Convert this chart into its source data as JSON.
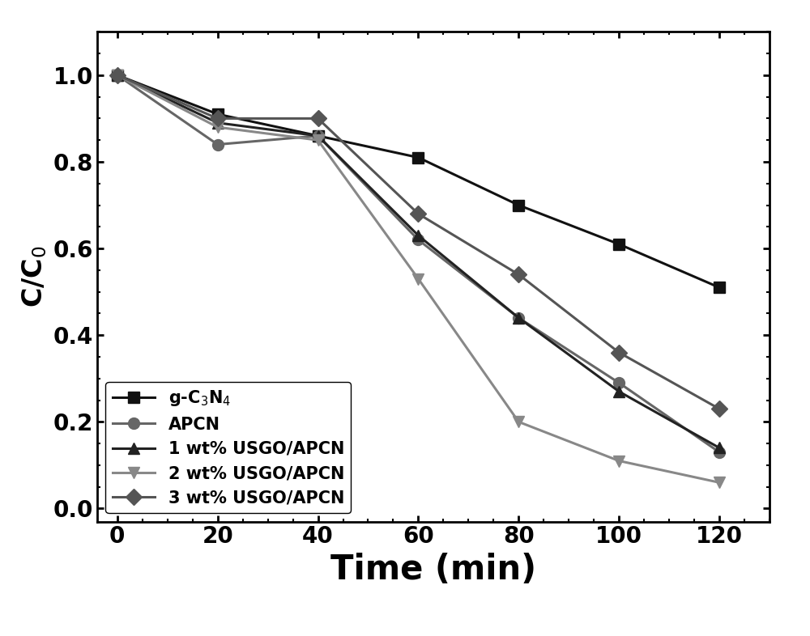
{
  "x": [
    0,
    20,
    40,
    60,
    80,
    100,
    120
  ],
  "series": [
    {
      "label": "g-C$_3$N$_4$",
      "y": [
        1.0,
        0.91,
        0.86,
        0.81,
        0.7,
        0.61,
        0.51
      ],
      "color": "#111111",
      "marker": "s",
      "markersize": 10,
      "linewidth": 2.2,
      "linestyle": "-"
    },
    {
      "label": "APCN",
      "y": [
        1.0,
        0.84,
        0.86,
        0.62,
        0.44,
        0.29,
        0.13
      ],
      "color": "#666666",
      "marker": "o",
      "markersize": 10,
      "linewidth": 2.2,
      "linestyle": "-"
    },
    {
      "label": "1 wt% USGO/APCN",
      "y": [
        1.0,
        0.89,
        0.86,
        0.63,
        0.44,
        0.27,
        0.14
      ],
      "color": "#222222",
      "marker": "^",
      "markersize": 10,
      "linewidth": 2.2,
      "linestyle": "-"
    },
    {
      "label": "2 wt% USGO/APCN",
      "y": [
        1.0,
        0.88,
        0.85,
        0.53,
        0.2,
        0.11,
        0.06
      ],
      "color": "#888888",
      "marker": "v",
      "markersize": 10,
      "linewidth": 2.2,
      "linestyle": "-"
    },
    {
      "label": "3 wt% USGO/APCN",
      "y": [
        1.0,
        0.9,
        0.9,
        0.68,
        0.54,
        0.36,
        0.23
      ],
      "color": "#555555",
      "marker": "D",
      "markersize": 10,
      "linewidth": 2.2,
      "linestyle": "-"
    }
  ],
  "xlabel": "Time (min)",
  "ylabel": "C/C$_0$",
  "xlim": [
    -4,
    130
  ],
  "ylim": [
    -0.03,
    1.1
  ],
  "xticks": [
    0,
    20,
    40,
    60,
    80,
    100,
    120
  ],
  "yticks": [
    0.0,
    0.2,
    0.4,
    0.6,
    0.8,
    1.0
  ],
  "legend_loc": "lower left",
  "legend_fontsize": 15,
  "xlabel_fontsize": 30,
  "ylabel_fontsize": 24,
  "tick_labelsize": 20,
  "figure_bg": "#ffffff",
  "axes_bg": "#ffffff",
  "figwidth": 10.0,
  "figheight": 7.86,
  "dpi": 100
}
